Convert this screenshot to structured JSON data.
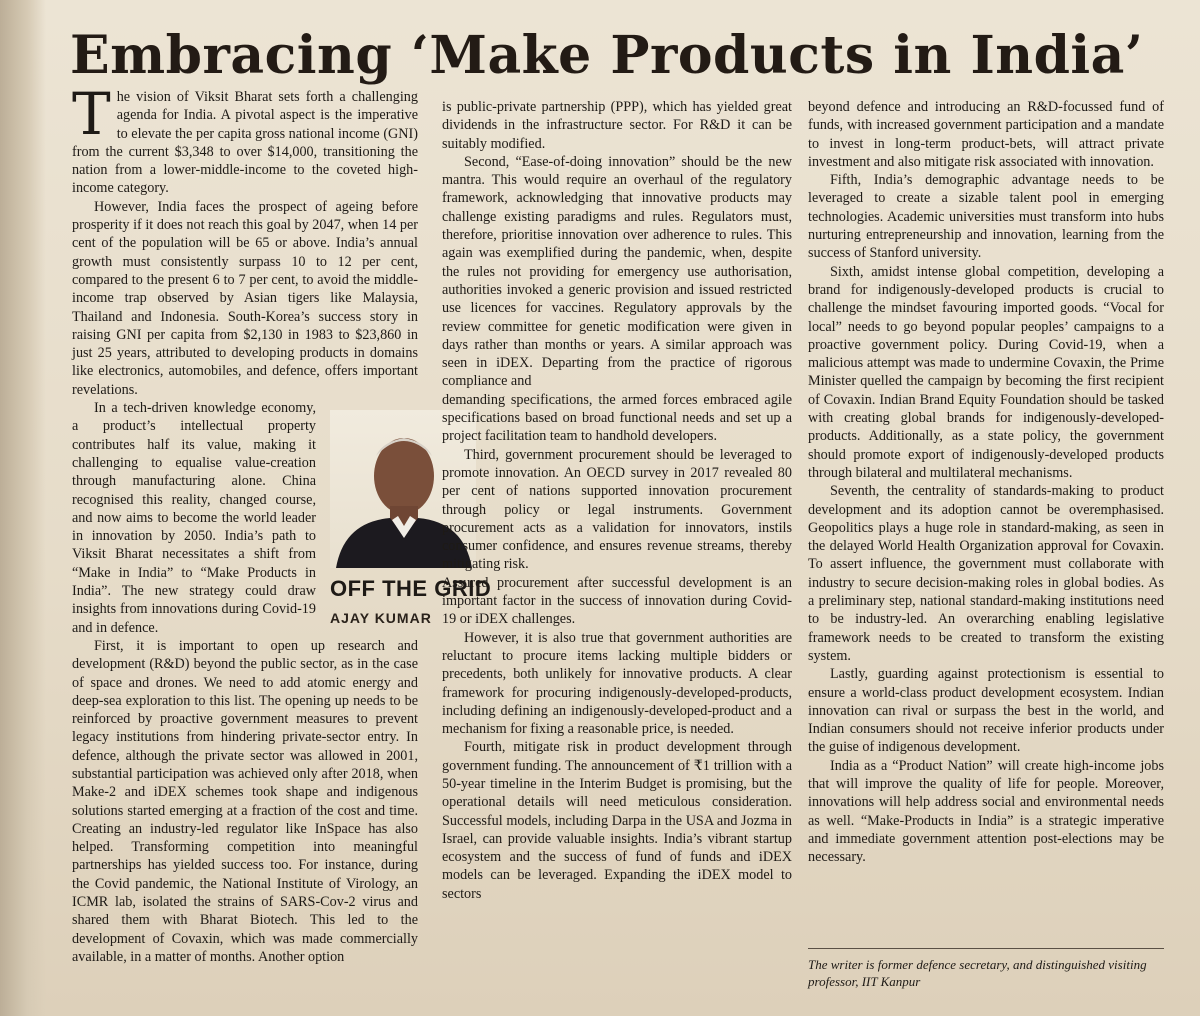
{
  "headline": "Embracing ‘Make Products in India’",
  "column_label": "OFF THE GRID",
  "author": "AJAY KUMAR",
  "dropcap": "T",
  "c1": [
    "he vision of Viksit Bharat sets forth a challenging agenda for India. A pivotal aspect is the imperative to elevate the per capita gross national income (GNI) from the current $3,348 to over $14,000, transitioning the nation from a lower-middle-income to the coveted high-income category.",
    "However, India faces the prospect of ageing before prosperity if it does not reach this goal by 2047, when 14 per cent of the population will be 65 or above. India’s annual growth must consistently surpass 10 to 12 per cent, compared to the present 6 to 7 per cent, to avoid the middle-income trap observed by Asian tigers like Malaysia, Thailand and Indonesia. South-Korea’s success story in raising GNI per capita from $2,130 in 1983 to $23,860 in just 25 years, attributed to developing products in domains like electronics, automobiles, and defence, offers important revelations.",
    "In a tech-driven knowledge economy, a product’s intellectual property contributes half its value, making it challenging to equalise value-creation through manufacturing alone. China recognised this reality, changed course, and now aims to become the world leader in innovation by 2050. India’s path to Viksit Bharat necessitates a shift from “Make in India” to “Make Products in India”. The new strategy could draw insights from innovations during Covid-19 and in defence.",
    "First, it is important to open up research and development (R&D) beyond the public sector, as in the case of space and drones. We need to add atomic energy and deep-sea exploration to this list. The opening up needs to be reinforced by proactive government measures to prevent legacy institutions from hindering private-sector entry. In defence, although the private sector was allowed in 2001, substantial participation was achieved only after 2018, when Make-2 and iDEX schemes took shape and indigenous solutions started emerging at a fraction of the cost and time. Creating an industry-led regulator like InSpace has also helped. Transforming competition into meaningful partnerships has yielded success too. For instance, during the Covid pandemic, the National Institute of Virology, an ICMR lab, isolated the strains of SARS-Cov-2 virus and shared them with Bharat Biotech. This led to the development of Covaxin, which was made commercially available, in a matter of months. Another option"
  ],
  "c2": [
    "is public-private partnership (PPP), which has yielded great dividends in the infrastructure sector. For R&D it can be suitably modified.",
    "Second, “Ease-of-doing innovation” should be the new mantra. This would require an overhaul of the regulatory framework, acknowledging that innovative products may challenge existing paradigms and rules. Regulators must, therefore, prioritise innovation over adherence to rules. This again was exemplified during the pandemic, when, despite the rules not providing for emergency use authorisation, authorities invoked a generic provision and issued restricted use licences for vaccines. Regulatory approvals by the review committee for genetic modification were given in days rather than months or years. A similar approach was seen in iDEX. Departing from the practice of rigorous compliance and",
    "demanding specifications, the armed forces embraced agile specifications based on broad functional needs and set up a project facilitation team to handhold developers.",
    "Third, government procurement should be leveraged to promote innovation. An OECD survey in 2017 revealed 80 per cent of nations supported innovation procurement through policy or legal instruments. Government procurement acts as a validation for innovators, instils consumer confidence, and ensures revenue streams, thereby mitigating risk.",
    "Assured procurement after successful development is an important factor in the success of innovation during Covid-19 or iDEX challenges.",
    "However, it is also true that government authorities are reluctant to procure items lacking multiple bidders or precedents, both unlikely for innovative products. A clear framework for procuring indigenously-developed-products, including defining an indigenously-developed-product and a mechanism for fixing a reasonable price, is needed.",
    "Fourth, mitigate risk in product development through government funding. The announcement of ₹1 trillion with a 50-year timeline in the Interim Budget is promising, but the operational details will need meticulous consideration. Successful models, including Darpa in the USA and Jozma in Israel, can provide valuable insights. India’s vibrant startup ecosystem and the success of fund of funds and iDEX models can be leveraged. Expanding the iDEX model to sectors"
  ],
  "c3": [
    "beyond defence and introducing an R&D-focussed fund of funds, with increased government participation and a mandate to invest in long-term product-bets, will attract private investment and also mitigate risk associated with innovation.",
    "Fifth, India’s demographic advantage needs to be leveraged to create a sizable talent pool in emerging technologies. Academic universities must transform into hubs nurturing entrepreneurship and innovation, learning from the success of Stanford university.",
    "Sixth, amidst intense global competition, developing a brand for indigenously-developed products is crucial to challenge the mindset favouring imported goods. “Vocal for local” needs to go beyond popular peoples’ campaigns to a proactive government policy. During Covid-19, when a malicious attempt was made to undermine Covaxin, the Prime Minister quelled the campaign by becoming the first recipient of Covaxin. Indian Brand Equity Foundation should be tasked with creating global brands for indigenously-developed-products. Additionally, as a state policy, the government should promote export of indigenously-developed products through bilateral and multilateral mechanisms.",
    "Seventh, the centrality of standards-making to product development and its adoption cannot be overemphasised. Geopolitics plays a huge role in standard-making, as seen in the delayed World Health Organization approval for Covaxin. To assert influence, the government must collaborate with industry to secure decision-making roles in global bodies. As a preliminary step, national standard-making institutions need to be industry-led. An overarching enabling legislative framework needs to be created to transform the existing system.",
    "Lastly, guarding against protectionism is essential to ensure a world-class product development ecosystem. Indian innovation can rival or surpass the best in the world, and Indian consumers should not receive inferior products under the guise of indigenous development.",
    "India as a “Product Nation” will create high-income jobs that will improve the quality of life for people. Moreover, innovations will help address social and environmental needs as well. “Make-Products in India” is a strategic imperative and immediate government attention post-elections may be necessary."
  ],
  "note": "The writer is former defence secretary, and distinguished visiting professor, IIT Kanpur"
}
